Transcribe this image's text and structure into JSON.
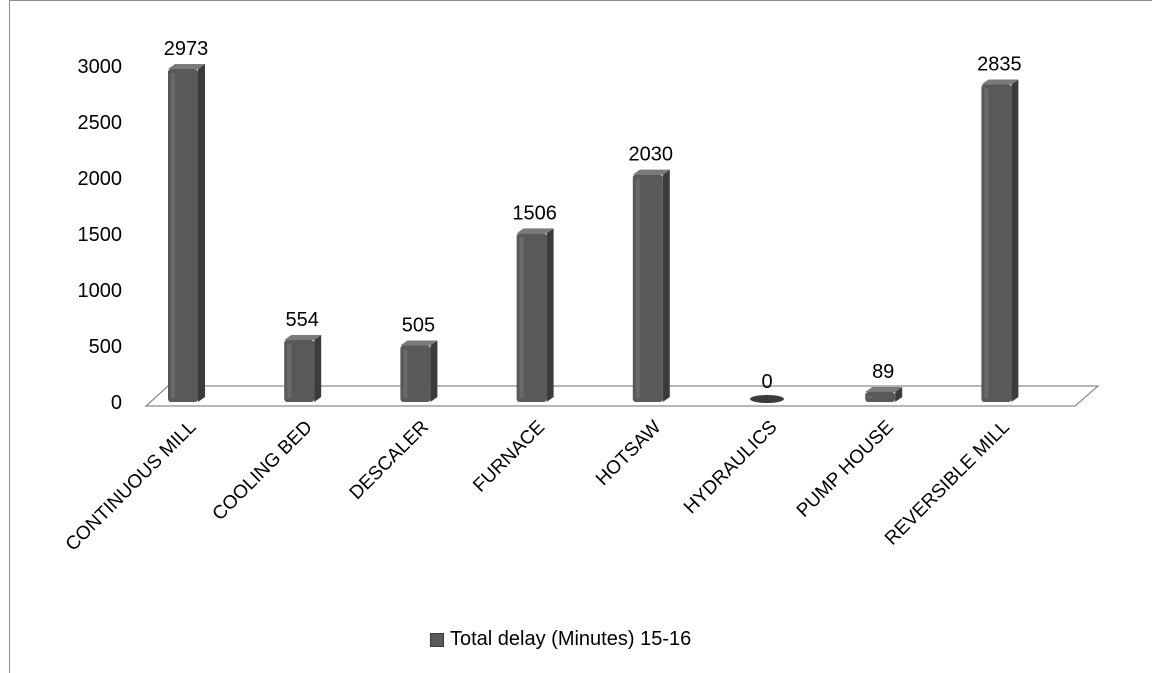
{
  "chart_data": {
    "type": "bar",
    "categories": [
      "CONTINUOUS MILL",
      "COOLING BED",
      "DESCALER",
      "FURNACE",
      "HOTSAW",
      "HYDRAULICS",
      "PUMP HOUSE",
      "REVERSIBLE MILL"
    ],
    "series": [
      {
        "name": "Total delay (Minutes) 15-16",
        "values": [
          2973,
          554,
          505,
          1506,
          2030,
          0,
          89,
          2835
        ]
      }
    ],
    "data_labels": [
      "2973",
      "554",
      "505",
      "1506",
      "2030",
      "0",
      "89",
      "2835"
    ],
    "yticks": [
      "0",
      "500",
      "1000",
      "1500",
      "2000",
      "2500",
      "3000"
    ],
    "ylim": [
      0,
      3000
    ],
    "grid": false,
    "legend_position": "bottom",
    "bar_color": "#595959",
    "title": "",
    "xlabel": "",
    "ylabel": ""
  },
  "legend": {
    "label": "Total delay (Minutes) 15-16"
  }
}
